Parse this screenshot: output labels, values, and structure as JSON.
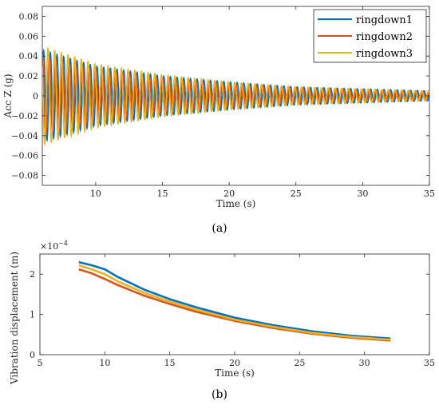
{
  "chart_data": [
    {
      "type": "line",
      "caption": "(a)",
      "xlabel": "Time (s)",
      "ylabel": "Acc Z (g)",
      "xlim": [
        6,
        35
      ],
      "ylim": [
        -0.09,
        0.09
      ],
      "xticks": [
        10,
        15,
        20,
        25,
        30,
        35
      ],
      "yticks": [
        -0.08,
        -0.06,
        -0.04,
        -0.02,
        0,
        0.02,
        0.04,
        0.06,
        0.08
      ],
      "ytick_labels": [
        "-0.08",
        "-0.06",
        "-0.04",
        "-0.02",
        "0",
        "0.02",
        "0.04",
        "0.06",
        "0.08"
      ],
      "legend_position": "top-right",
      "series": [
        {
          "name": "ringdown1",
          "color": "#0072BD",
          "amplitude_envelope": {
            "t": [
              6,
              10,
              15,
              20,
              25,
              30,
              35
            ],
            "amp": [
              0.046,
              0.03,
              0.02,
              0.014,
              0.009,
              0.007,
              0.005
            ]
          },
          "frequency_hz": 2.0,
          "phase": 0.3
        },
        {
          "name": "ringdown2",
          "color": "#D95319",
          "amplitude_envelope": {
            "t": [
              6,
              10,
              15,
              20,
              25,
              30,
              35
            ],
            "amp": [
              0.04,
              0.027,
              0.018,
              0.012,
              0.008,
              0.006,
              0.004
            ]
          },
          "frequency_hz": 2.0,
          "phase": 1.4
        },
        {
          "name": "ringdown3",
          "color": "#EDB120",
          "amplitude_envelope": {
            "t": [
              6,
              10,
              15,
              20,
              25,
              30,
              35
            ],
            "amp": [
              0.05,
              0.032,
              0.021,
              0.014,
              0.009,
              0.007,
              0.005
            ]
          },
          "frequency_hz": 2.0,
          "phase": 2.5
        }
      ]
    },
    {
      "type": "line",
      "caption": "(b)",
      "xlabel": "Time (s)",
      "ylabel": "Vibration displacement (m)",
      "exponent_label": "×10",
      "exponent_power": "−4",
      "xlim": [
        5,
        35
      ],
      "ylim": [
        0,
        2.5
      ],
      "xticks": [
        5,
        10,
        15,
        20,
        25,
        30,
        35
      ],
      "yticks": [
        0,
        1,
        2
      ],
      "series": [
        {
          "name": "ringdown1",
          "color": "#0072BD",
          "x": [
            8,
            9,
            10,
            11,
            13,
            15,
            17,
            20,
            23,
            26,
            29,
            32
          ],
          "y": [
            2.3,
            2.22,
            2.12,
            1.93,
            1.62,
            1.38,
            1.18,
            0.92,
            0.73,
            0.58,
            0.47,
            0.4
          ]
        },
        {
          "name": "ringdown2",
          "color": "#D95319",
          "x": [
            8,
            9,
            10,
            11,
            13,
            15,
            17,
            20,
            23,
            26,
            29,
            32
          ],
          "y": [
            2.12,
            2.02,
            1.88,
            1.73,
            1.47,
            1.26,
            1.07,
            0.84,
            0.66,
            0.52,
            0.42,
            0.35
          ]
        },
        {
          "name": "ringdown3",
          "color": "#EDB120",
          "x": [
            8,
            9,
            10,
            11,
            13,
            15,
            17,
            20,
            23,
            26,
            29,
            32
          ],
          "y": [
            2.22,
            2.12,
            2.0,
            1.82,
            1.54,
            1.32,
            1.12,
            0.87,
            0.69,
            0.54,
            0.44,
            0.37
          ]
        }
      ]
    }
  ]
}
